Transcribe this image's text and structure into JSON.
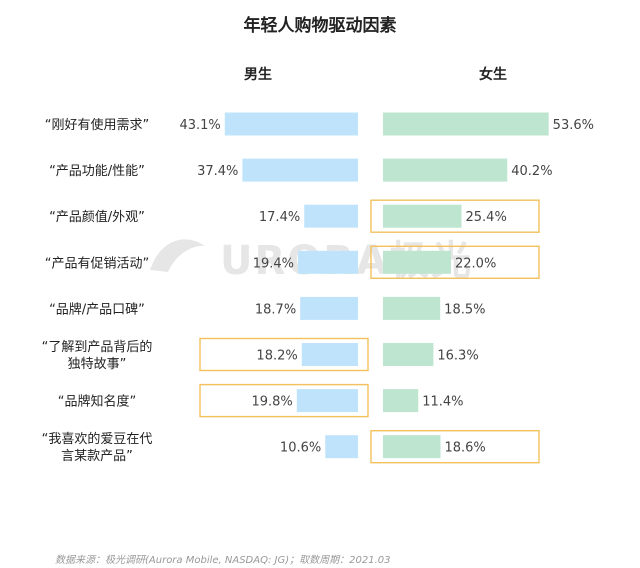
{
  "chart_data": {
    "type": "bar",
    "title": "年轻人购物驱动因素",
    "categories": [
      [
        "“刚好有使用需求”"
      ],
      [
        "“产品功能/性能”"
      ],
      [
        "“产品颜值/外观”"
      ],
      [
        "“产品有促销活动”"
      ],
      [
        "“品牌/产品口碑”"
      ],
      [
        "“了解到产品背后的",
        "独特故事”"
      ],
      [
        "“品牌知名度”"
      ],
      [
        "“我喜欢的爱豆在代",
        "言某款产品”"
      ]
    ],
    "series": [
      {
        "name": "男生",
        "color": "#bfe3fb",
        "values": [
          43.1,
          37.4,
          17.4,
          19.4,
          18.7,
          18.2,
          19.8,
          10.6
        ],
        "labels": [
          "43.1%",
          "37.4%",
          "17.4%",
          "19.4%",
          "18.7%",
          "18.2%",
          "19.8%",
          "10.6%"
        ],
        "highlighted": [
          false,
          false,
          false,
          false,
          false,
          true,
          true,
          false
        ]
      },
      {
        "name": "女生",
        "color": "#bde5cf",
        "values": [
          53.6,
          40.2,
          25.4,
          22.0,
          18.5,
          16.3,
          11.4,
          18.6
        ],
        "labels": [
          "53.6%",
          "40.2%",
          "25.4%",
          "22.0%",
          "18.5%",
          "16.3%",
          "11.4%",
          "18.6%"
        ],
        "highlighted": [
          false,
          false,
          true,
          true,
          false,
          false,
          false,
          true
        ]
      }
    ],
    "highlight_color": "#f2c15d",
    "xlim": [
      0,
      55
    ],
    "source": "数据来源：极光调研(Aurora Mobile, NASDAQ: JG)；取数周期：2021.03",
    "watermark": "URORA极光"
  }
}
